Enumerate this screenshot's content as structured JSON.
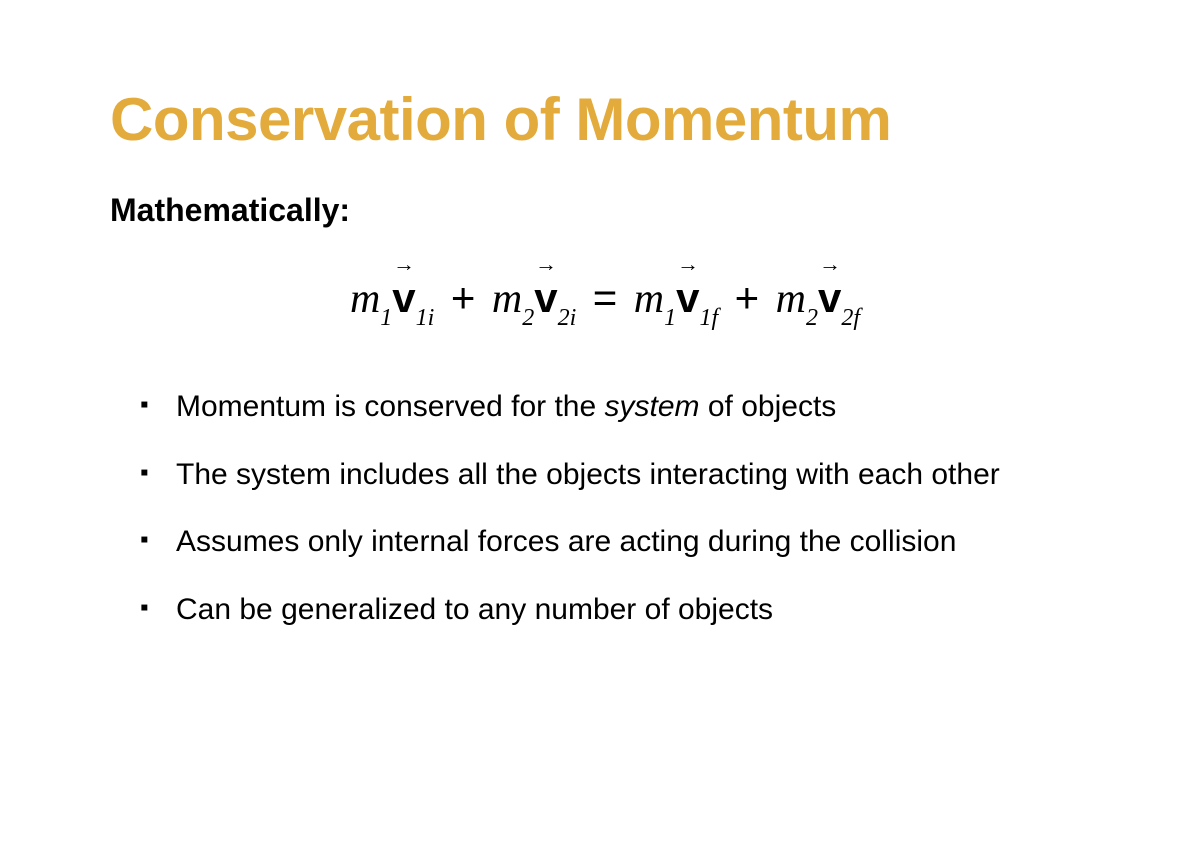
{
  "title": "Conservation of Momentum",
  "subtitle": "Mathematically:",
  "equation": {
    "terms": [
      {
        "mass": "m",
        "mass_sub": "1",
        "vec": "v",
        "vec_sub": "1i"
      },
      {
        "mass": "m",
        "mass_sub": "2",
        "vec": "v",
        "vec_sub": "2i"
      },
      {
        "mass": "m",
        "mass_sub": "1",
        "vec": "v",
        "vec_sub": "1f"
      },
      {
        "mass": "m",
        "mass_sub": "2",
        "vec": "v",
        "vec_sub": "2f"
      }
    ],
    "ops": {
      "plus": "+",
      "equals": "="
    }
  },
  "bullets": [
    {
      "pre": "Momentum is conserved for the ",
      "italic": "system",
      "post": " of objects"
    },
    {
      "pre": "The system includes all the objects interacting with each other",
      "italic": "",
      "post": ""
    },
    {
      "pre": "Assumes only internal forces are acting during the collision",
      "italic": "",
      "post": ""
    },
    {
      "pre": "Can be generalized to any number of objects",
      "italic": "",
      "post": ""
    }
  ],
  "colors": {
    "title": "#e3ab3c",
    "text": "#000000",
    "background": "#ffffff"
  }
}
